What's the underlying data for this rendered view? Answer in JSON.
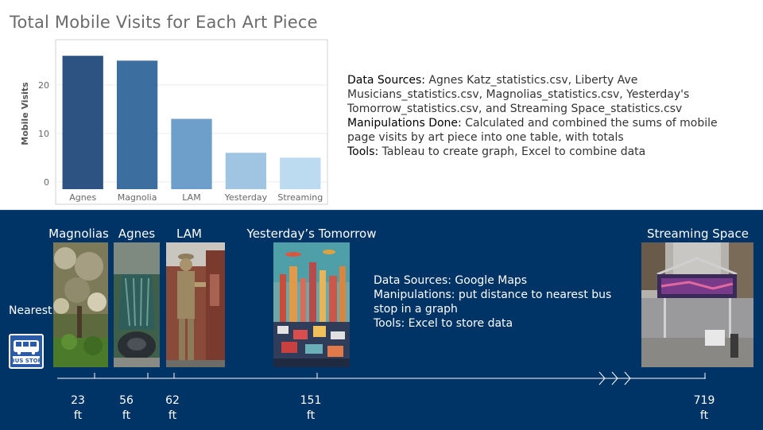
{
  "chart_data": {
    "type": "bar",
    "title": "Total Mobile Visits for Each Art Piece",
    "categories": [
      "Agnes",
      "Magnolia",
      "LAM",
      "Yesterday",
      "Streaming"
    ],
    "values": [
      26,
      25,
      13,
      6,
      5
    ],
    "colors": [
      "#2c5381",
      "#3d6ea0",
      "#6e9fca",
      "#9fc5e3",
      "#bcdaf0"
    ],
    "xlabel": "",
    "ylabel": "Mobile Visits",
    "yticks": [
      0,
      10,
      20
    ],
    "ylim": [
      -1.5,
      28
    ],
    "grid": true
  },
  "notes": {
    "sources_label": "Data Sources:",
    "sources_text": " Agnes Katz_statistics.csv, Liberty Ave Musicians_statistics.csv, Magnolias_statistics.csv, Yesterday's Tomorrow_statistics.csv, and Streaming Space_statistics.csv",
    "manip_label": "Manipulations Done:",
    "manip_text": " Calculated and combined the sums of mobile page visits by art piece into one table, with totals",
    "tools_label": "Tools:",
    "tools_text": " Tableau to create graph, Excel to combine data"
  },
  "timeline": {
    "nearest_label": "Nearest",
    "bus_stop_text": "BUS STOP",
    "pieces": [
      {
        "name": "Magnolias",
        "distance": "23",
        "unit": "ft"
      },
      {
        "name": "Agnes",
        "distance": "56",
        "unit": "ft"
      },
      {
        "name": "LAM",
        "distance": "62",
        "unit": "ft"
      },
      {
        "name": "Yesterday’s Tomorrow",
        "distance": "151",
        "unit": "ft"
      },
      {
        "name": "Streaming Space",
        "distance": "719",
        "unit": "ft"
      }
    ],
    "notes": {
      "sources_label": "Data Sources:",
      "sources_text": " Google Maps",
      "manip_label": "Manipulations:",
      "manip_text": " put distance to nearest bus stop in a graph",
      "tools_label": "Tools:",
      "tools_text": " Excel to store data"
    }
  }
}
